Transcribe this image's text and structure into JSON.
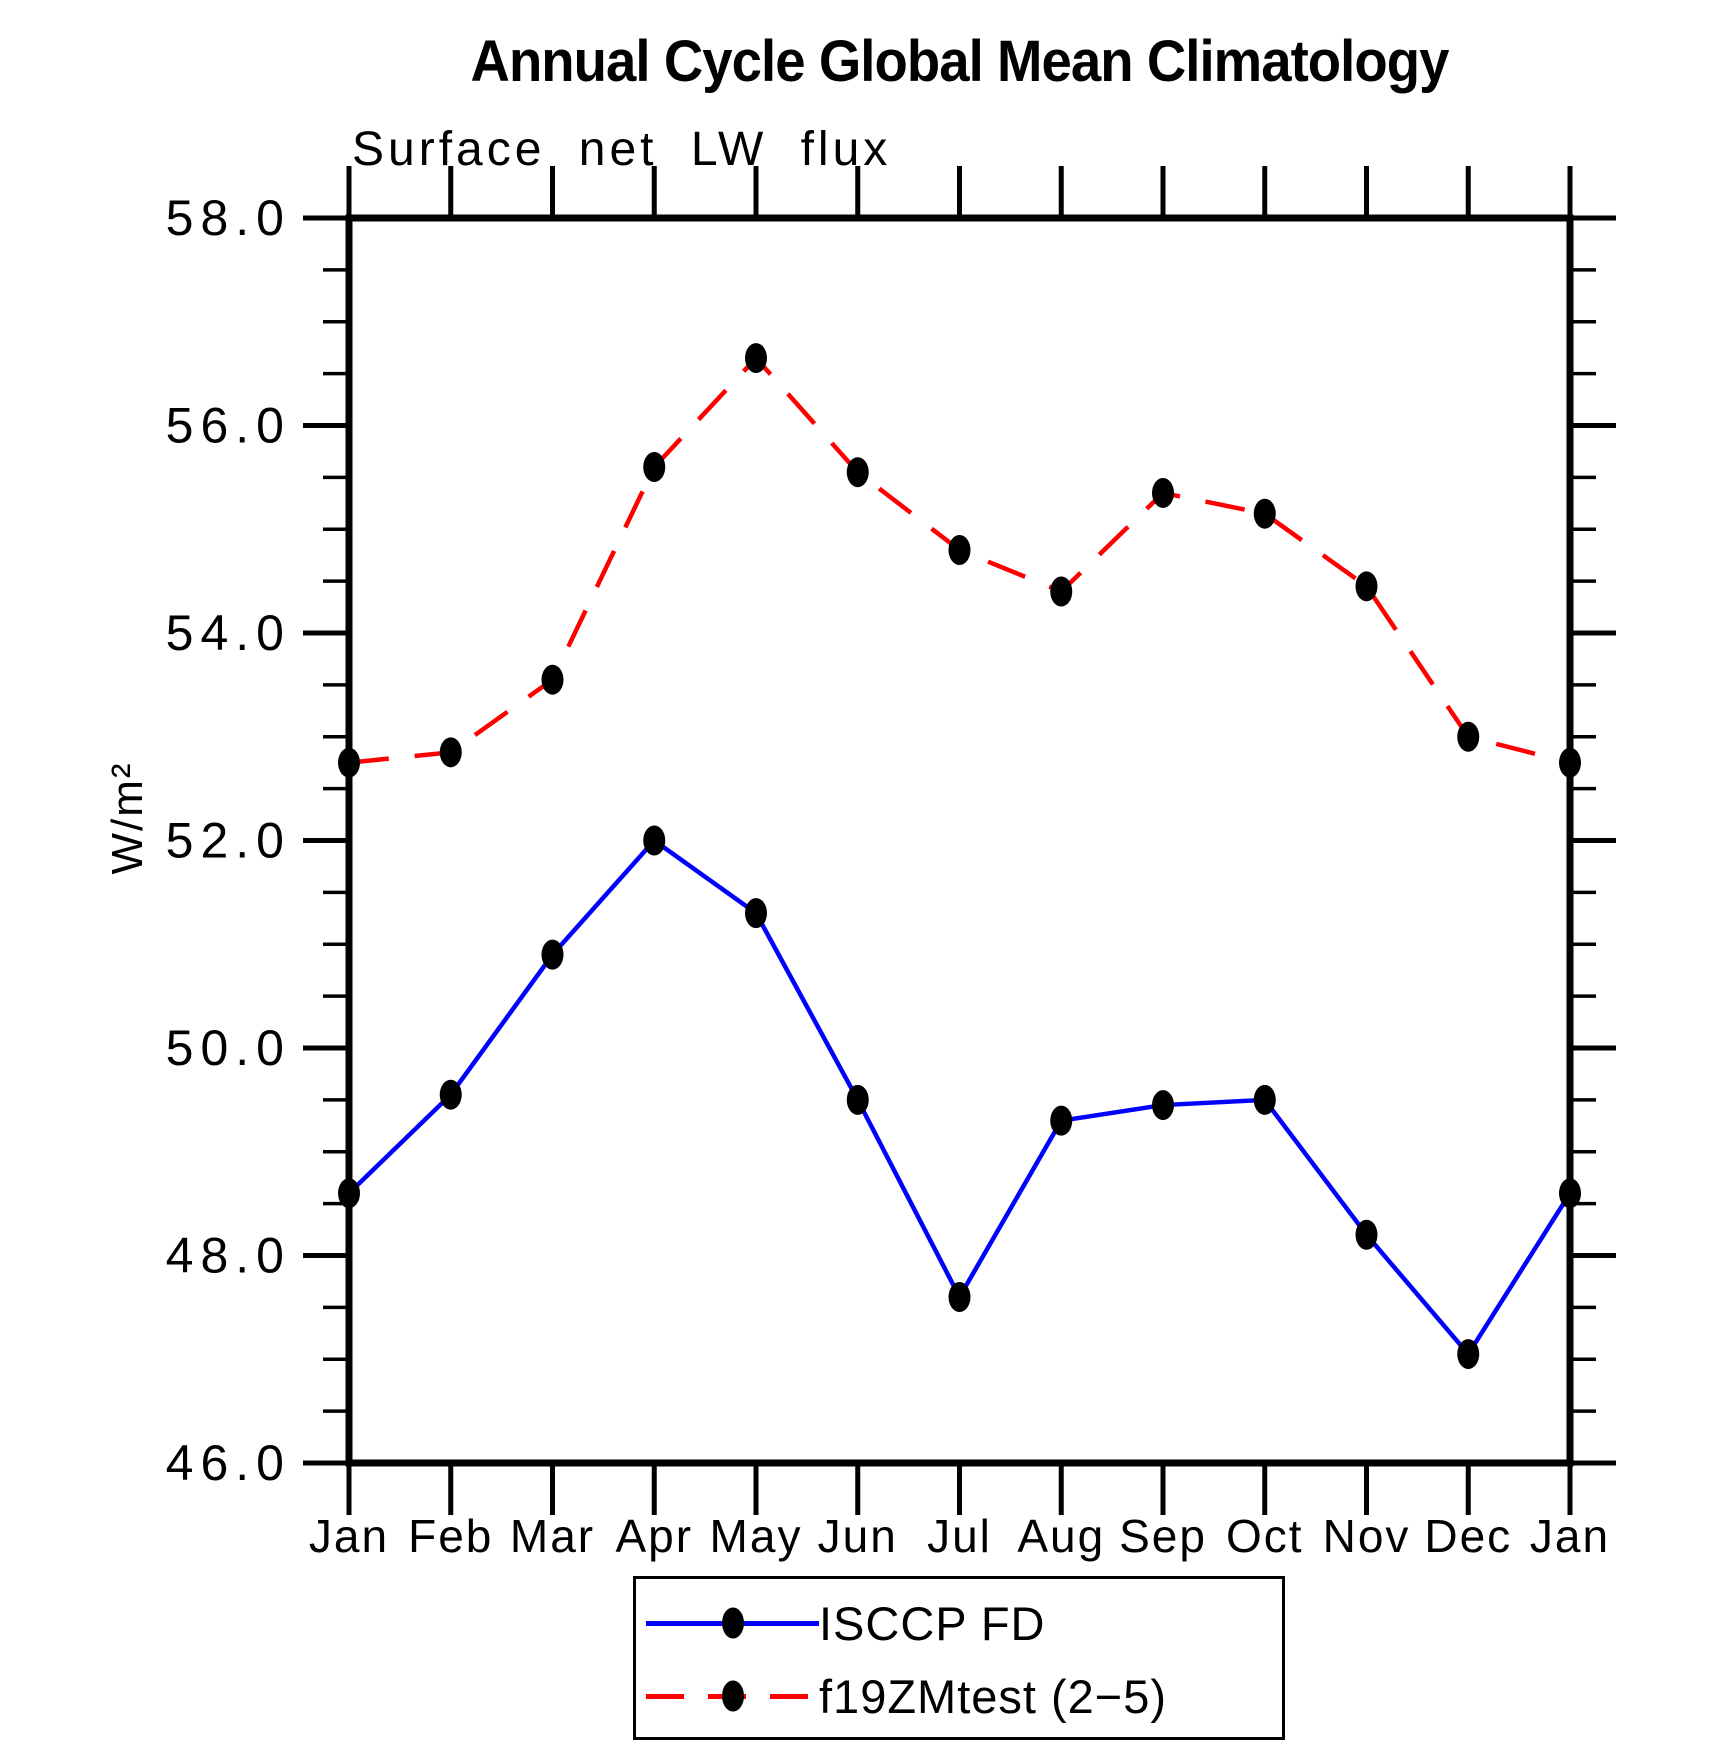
{
  "chart_data": {
    "type": "line",
    "title": "Annual Cycle Global Mean Climatology",
    "subtitle": "Surface net LW flux",
    "ylabel": "W/m²",
    "xlabel": "",
    "x_categories": [
      "Jan",
      "Feb",
      "Mar",
      "Apr",
      "May",
      "Jun",
      "Jul",
      "Aug",
      "Sep",
      "Oct",
      "Nov",
      "Dec",
      "Jan"
    ],
    "series": [
      {
        "name": "ISCCP FD",
        "color": "#0000ff",
        "line_style": "solid",
        "marker": "filled-ellipse",
        "marker_color": "#000000",
        "values": [
          48.6,
          49.55,
          50.9,
          52.0,
          51.3,
          49.5,
          47.6,
          49.3,
          49.45,
          49.5,
          48.2,
          47.05,
          48.6
        ]
      },
      {
        "name": "f19ZMtest (2−5)",
        "color": "#ff0000",
        "line_style": "dashed",
        "marker": "filled-ellipse",
        "marker_color": "#000000",
        "values": [
          52.75,
          52.85,
          53.55,
          55.6,
          56.65,
          55.55,
          54.8,
          54.4,
          55.35,
          55.15,
          54.45,
          53.0,
          52.75
        ]
      }
    ],
    "ylim": [
      46.0,
      58.0
    ],
    "ytick_step": 2.0,
    "yminor_step": 0.5,
    "ytick_labels": [
      "46.0",
      "48.0",
      "50.0",
      "52.0",
      "54.0",
      "56.0",
      "58.0"
    ],
    "grid": false,
    "legend_position": "bottom-center",
    "axis_color": "#000000",
    "background_color": "#ffffff"
  }
}
